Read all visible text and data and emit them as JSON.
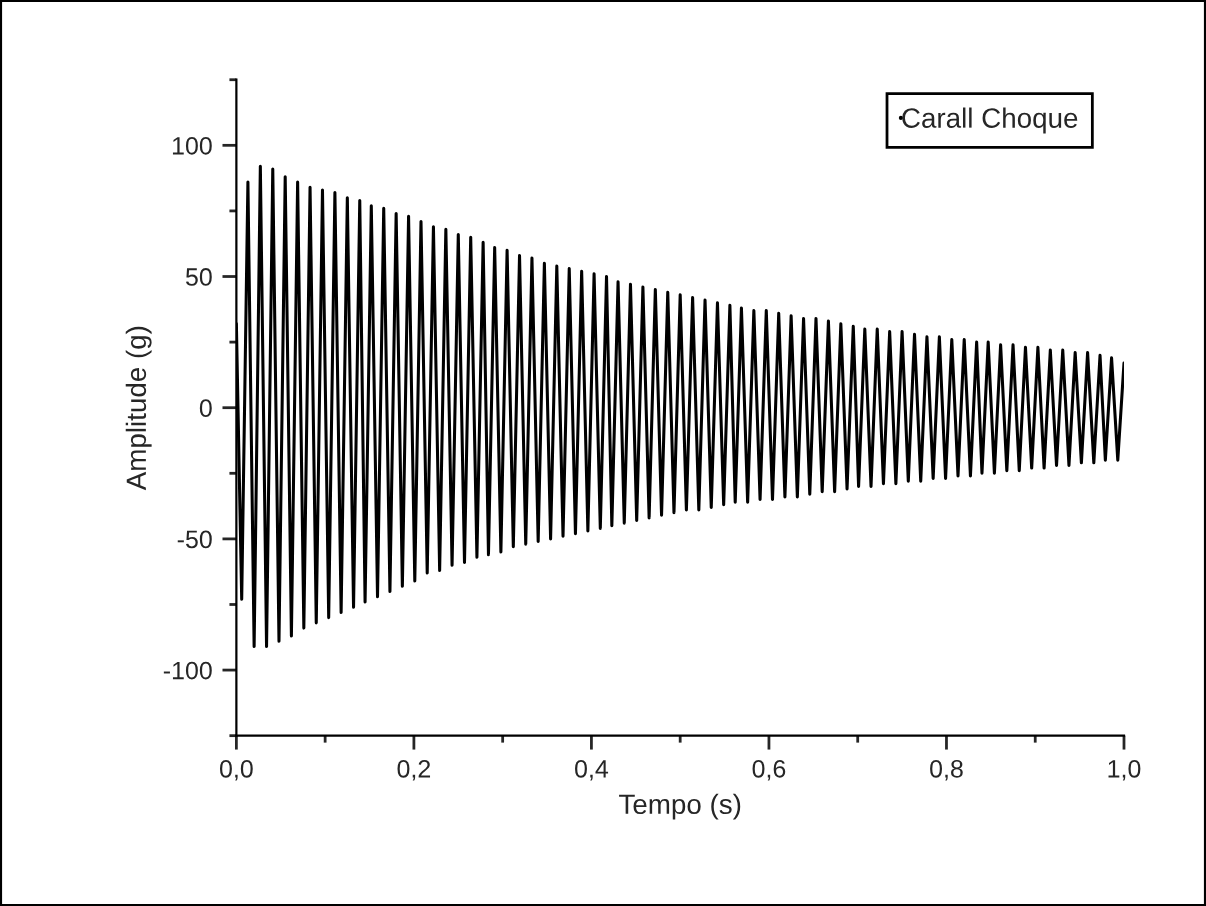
{
  "chart_data": {
    "type": "line",
    "xlabel": "Tempo (s)",
    "ylabel": "Amplitude (g)",
    "legend": "top right",
    "grid": false,
    "xlim": [
      0,
      1
    ],
    "ylim": [
      -125,
      125
    ],
    "xticks": [
      {
        "value": 0,
        "label": "0,0"
      },
      {
        "value": 0.1,
        "label": null
      },
      {
        "value": 0.2,
        "label": "0,2"
      },
      {
        "value": 0.3,
        "label": null
      },
      {
        "value": 0.4,
        "label": "0,4"
      },
      {
        "value": 0.5,
        "label": null
      },
      {
        "value": 0.6,
        "label": "0,6"
      },
      {
        "value": 0.7,
        "label": null
      },
      {
        "value": 0.8,
        "label": "0,8"
      },
      {
        "value": 0.9,
        "label": null
      },
      {
        "value": 1.0,
        "label": "1,0"
      }
    ],
    "yticks": [
      {
        "value": -125,
        "label": null
      },
      -100,
      {
        "value": -75,
        "label": null
      },
      -50,
      {
        "value": -25,
        "label": null
      },
      0,
      {
        "value": 25,
        "label": null
      },
      50,
      {
        "value": 75,
        "label": null
      },
      100,
      {
        "value": 125,
        "label": null
      }
    ],
    "series": [
      {
        "name": "Carall Choque",
        "color": "#000000",
        "x": [
          0,
          0.006,
          0.013,
          0.02,
          0.027,
          0.034,
          0.041,
          0.048,
          0.055,
          0.062,
          0.069,
          0.076,
          0.083,
          0.09,
          0.097,
          0.104,
          0.111,
          0.118,
          0.125,
          0.132,
          0.139,
          0.145,
          0.152,
          0.159,
          0.166,
          0.173,
          0.18,
          0.187,
          0.194,
          0.201,
          0.208,
          0.215,
          0.222,
          0.229,
          0.236,
          0.243,
          0.25,
          0.257,
          0.264,
          0.271,
          0.278,
          0.284,
          0.291,
          0.298,
          0.305,
          0.312,
          0.319,
          0.326,
          0.333,
          0.34,
          0.347,
          0.354,
          0.361,
          0.368,
          0.375,
          0.382,
          0.389,
          0.396,
          0.403,
          0.41,
          0.417,
          0.423,
          0.43,
          0.437,
          0.444,
          0.451,
          0.458,
          0.465,
          0.472,
          0.479,
          0.486,
          0.493,
          0.5,
          0.507,
          0.514,
          0.521,
          0.528,
          0.535,
          0.542,
          0.549,
          0.556,
          0.562,
          0.569,
          0.576,
          0.583,
          0.59,
          0.597,
          0.604,
          0.611,
          0.618,
          0.625,
          0.632,
          0.639,
          0.646,
          0.653,
          0.66,
          0.667,
          0.674,
          0.681,
          0.688,
          0.695,
          0.701,
          0.708,
          0.715,
          0.722,
          0.729,
          0.736,
          0.743,
          0.75,
          0.757,
          0.764,
          0.771,
          0.778,
          0.785,
          0.792,
          0.799,
          0.806,
          0.813,
          0.82,
          0.827,
          0.834,
          0.84,
          0.847,
          0.854,
          0.861,
          0.868,
          0.875,
          0.882,
          0.889,
          0.896,
          0.903,
          0.91,
          0.917,
          0.924,
          0.931,
          0.938,
          0.945,
          0.952,
          0.959,
          0.966,
          0.973,
          0.979,
          0.986,
          0.993,
          1.0
        ],
        "values": [
          32,
          -73,
          86,
          -91,
          92,
          -91,
          91,
          -89,
          88,
          -87,
          86,
          -84,
          84,
          -82,
          83,
          -80,
          82,
          -78,
          80,
          -76,
          79,
          -74,
          77,
          -72,
          76,
          -70,
          74,
          -68,
          73,
          -66,
          71,
          -63,
          69,
          -62,
          68,
          -60,
          66,
          -59,
          65,
          -57,
          63,
          -56,
          61,
          -55,
          60,
          -53,
          58,
          -52,
          57,
          -51,
          55,
          -50,
          54,
          -49,
          53,
          -48,
          52,
          -47,
          51,
          -46,
          50,
          -45,
          48,
          -44,
          47,
          -43,
          46,
          -42,
          45,
          -41,
          44,
          -40,
          43,
          -39,
          42,
          -39,
          41,
          -38,
          40,
          -37,
          39,
          -36,
          38,
          -36,
          37,
          -35,
          37,
          -35,
          36,
          -34,
          35,
          -34,
          34,
          -33,
          34,
          -32,
          33,
          -32,
          32,
          -31,
          31,
          -30,
          30,
          -30,
          30,
          -29,
          29,
          -29,
          29,
          -28,
          28,
          -28,
          27,
          -27,
          27,
          -27,
          26,
          -26,
          26,
          -26,
          25,
          -25,
          25,
          -25,
          24,
          -24,
          24,
          -24,
          23,
          -23,
          23,
          -23,
          22,
          -22,
          22,
          -22,
          21,
          -21,
          21,
          -21,
          20,
          -20,
          19,
          -20,
          17
        ]
      }
    ]
  }
}
